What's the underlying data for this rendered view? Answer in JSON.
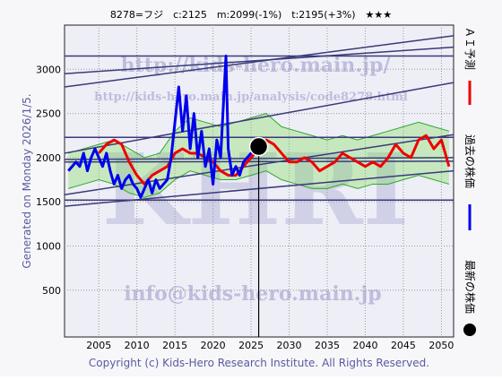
{
  "chart_data": {
    "type": "line",
    "title": "8278=フジ　c:2125　m:2099(-1%)　t:2195(+3%)　★★★",
    "generated": "Generated on Monday 2026/1/5.",
    "footer": "Copyright (c) Kids-Hero Research Institute. All Rights Reserved.",
    "watermarks": [
      "http://kids-hero.main.jp/",
      "http://kids-hero.main.jp/analysis/code8278.html",
      "info@kids-hero.main.jp",
      "KHRI"
    ],
    "xlim": [
      2000.5,
      2051.6
    ],
    "ylim": [
      -30,
      3500
    ],
    "xticks": [
      2005,
      2010,
      2015,
      2020,
      2025,
      2030,
      2035,
      2040,
      2045,
      2050
    ],
    "yticks": [
      500,
      1000,
      1500,
      2000,
      2500,
      3000
    ],
    "grid": true,
    "bands": [
      {
        "color": "#7fdc5a",
        "x": [
          2001,
          2003,
          2005,
          2007,
          2009,
          2011,
          2013,
          2015,
          2017,
          2019,
          2021,
          2023,
          2025,
          2027,
          2029,
          2031,
          2033,
          2035,
          2037,
          2039,
          2041,
          2043,
          2045,
          2047,
          2049,
          2051
        ],
        "upper": [
          2050,
          2100,
          2150,
          2200,
          2100,
          2000,
          2050,
          2300,
          2450,
          2400,
          2350,
          2400,
          2450,
          2500,
          2350,
          2300,
          2250,
          2200,
          2250,
          2200,
          2250,
          2300,
          2350,
          2400,
          2350,
          2300
        ],
        "lower": [
          1650,
          1700,
          1750,
          1700,
          1600,
          1550,
          1600,
          1750,
          1850,
          1800,
          1750,
          1750,
          1800,
          1850,
          1750,
          1700,
          1650,
          1650,
          1700,
          1650,
          1700,
          1700,
          1750,
          1800,
          1750,
          1700
        ]
      }
    ],
    "trend_lines": [
      {
        "color": "#3a3a7a",
        "start": 3150,
        "end": 3150
      },
      {
        "color": "#3a3a7a",
        "start": 2800,
        "end": 3380
      },
      {
        "color": "#3a3a7a",
        "start": 2950,
        "end": 3250
      },
      {
        "color": "#3a3a7a",
        "start": 2230,
        "end": 2230
      },
      {
        "color": "#3a3a7a",
        "start": 1980,
        "end": 2000
      },
      {
        "color": "#3a3a7a",
        "start": 1950,
        "end": 1960
      },
      {
        "color": "#3a3a7a",
        "start": 1580,
        "end": 2260
      },
      {
        "color": "#3a3a7a",
        "start": 1450,
        "end": 1850
      },
      {
        "color": "#3a3a7a",
        "start": 1520,
        "end": 1520
      },
      {
        "color": "#3a3a7a",
        "start": 2050,
        "end": 2850
      }
    ],
    "series": [
      {
        "name": "ＡＩ予測",
        "color": "#ee0000",
        "x": [
          2005,
          2006,
          2007,
          2008,
          2009,
          2010,
          2011,
          2012,
          2013,
          2014,
          2015,
          2016,
          2017,
          2018,
          2019,
          2020,
          2021,
          2022,
          2023,
          2024,
          2025,
          2026,
          2027,
          2028,
          2029,
          2030,
          2031,
          2032,
          2033,
          2034,
          2035,
          2036,
          2037,
          2038,
          2039,
          2040,
          2041,
          2042,
          2043,
          2044,
          2045,
          2046,
          2047,
          2048,
          2049,
          2050,
          2051
        ],
        "values": [
          2050,
          2150,
          2200,
          2150,
          1950,
          1800,
          1700,
          1800,
          1850,
          1900,
          2050,
          2100,
          2050,
          2050,
          2000,
          1950,
          1850,
          1800,
          1800,
          1900,
          2000,
          2100,
          2200,
          2150,
          2050,
          1950,
          1950,
          2000,
          1950,
          1850,
          1900,
          1950,
          2050,
          2000,
          1950,
          1900,
          1950,
          1900,
          2000,
          2150,
          2050,
          2000,
          2200,
          2250,
          2100,
          2200,
          1900
        ]
      },
      {
        "name": "過去の株価",
        "color": "#0000ee",
        "x": [
          2001,
          2001.5,
          2002,
          2002.5,
          2003,
          2003.5,
          2004,
          2004.5,
          2005,
          2005.5,
          2006,
          2006.5,
          2007,
          2007.5,
          2008,
          2008.5,
          2009,
          2009.5,
          2010,
          2010.5,
          2011,
          2011.5,
          2012,
          2012.5,
          2013,
          2013.5,
          2014,
          2014.5,
          2015,
          2015.5,
          2016,
          2016.5,
          2017,
          2017.5,
          2018,
          2018.5,
          2019,
          2019.5,
          2020,
          2020.5,
          2021,
          2021.7,
          2022,
          2022.5,
          2023,
          2023.5,
          2024,
          2024.5,
          2025,
          2025.5
        ],
        "values": [
          1850,
          1900,
          1950,
          1900,
          2050,
          1850,
          2000,
          2100,
          2000,
          1900,
          2050,
          1850,
          1700,
          1800,
          1650,
          1750,
          1800,
          1700,
          1650,
          1550,
          1650,
          1750,
          1600,
          1750,
          1650,
          1700,
          1750,
          2000,
          2400,
          2800,
          2300,
          2700,
          2100,
          2500,
          2000,
          2300,
          1900,
          2100,
          1700,
          2200,
          2000,
          3150,
          2100,
          1800,
          1900,
          1800,
          1950,
          2000,
          2050,
          2100
        ]
      }
    ],
    "latest": {
      "name": "最新の株価",
      "color": "#000000",
      "x": 2026,
      "value": 2125
    }
  }
}
